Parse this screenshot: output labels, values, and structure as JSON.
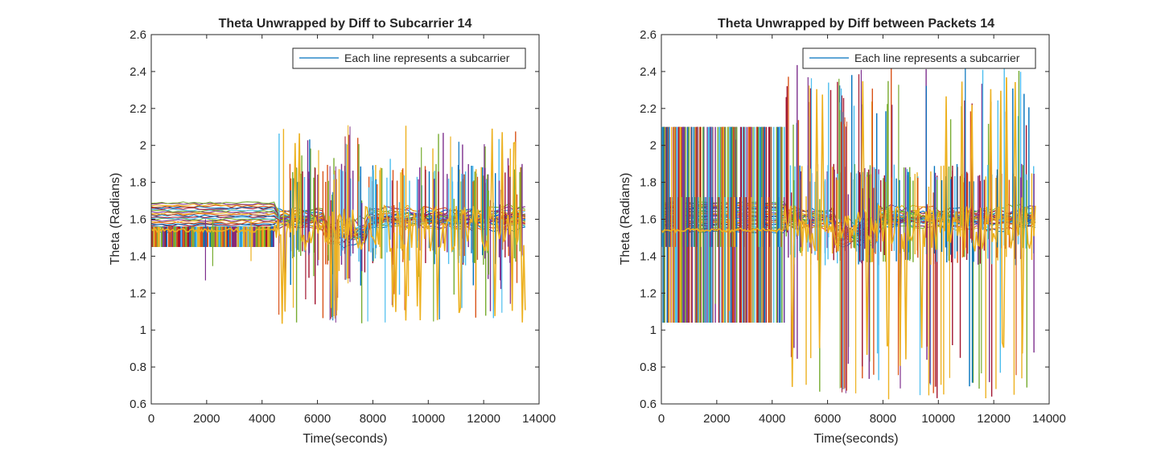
{
  "chart_data": [
    {
      "type": "line",
      "title": "Theta Unwrapped by Diff to Subcarrier 14",
      "xlabel": "Time(seconds)",
      "ylabel": "Theta (Radians)",
      "xlim": [
        0,
        14000
      ],
      "ylim": [
        0.6,
        2.6
      ],
      "xticks": [
        "0",
        "2000",
        "4000",
        "6000",
        "8000",
        "10000",
        "12000",
        "14000"
      ],
      "yticks": [
        "0.6",
        "0.8",
        "1",
        "1.2",
        "1.4",
        "1.6",
        "1.8",
        "2",
        "2.2",
        "2.4",
        "2.6"
      ],
      "legend": {
        "entries": [
          "Each line represents a subcarrier"
        ],
        "placement": "top-right"
      },
      "grid": false,
      "series_note": "Many overlapping subcarrier lines, ~13500 samples",
      "segments": [
        {
          "x": [
            0,
            4450
          ],
          "band": [
            1.45,
            1.7
          ],
          "spikes": [
            1.25,
            1.24
          ]
        },
        {
          "x": [
            4450,
            13500
          ],
          "band": [
            1.45,
            1.9
          ],
          "spikes": [
            1.03,
            2.11
          ]
        }
      ],
      "events": [
        {
          "x": [
            6450,
            6700
          ],
          "low": 1.04,
          "high": 1.89
        },
        {
          "x": [
            7000,
            7200
          ],
          "low": 1.25,
          "high": 2.11
        }
      ]
    },
    {
      "type": "line",
      "title": "Theta Unwrapped by Diff between Packets 14",
      "xlabel": "Time(seconds)",
      "ylabel": "Theta (Radians)",
      "xlim": [
        0,
        14000
      ],
      "ylim": [
        0.6,
        2.6
      ],
      "xticks": [
        "0",
        "2000",
        "4000",
        "6000",
        "8000",
        "10000",
        "12000",
        "14000"
      ],
      "yticks": [
        "0.6",
        "0.8",
        "1",
        "1.2",
        "1.4",
        "1.6",
        "1.8",
        "2",
        "2.2",
        "2.4",
        "2.6"
      ],
      "legend": {
        "entries": [
          "Each line represents a subcarrier"
        ],
        "placement": "top-right"
      },
      "grid": false,
      "series_note": "Many overlapping subcarrier lines, ~13500 samples",
      "segments": [
        {
          "x": [
            0,
            4450
          ],
          "band": [
            1.45,
            1.7
          ],
          "spikes": [
            1.03,
            2.11
          ]
        },
        {
          "x": [
            4450,
            13500
          ],
          "band": [
            1.45,
            1.9
          ],
          "spikes": [
            0.62,
            2.45
          ]
        }
      ],
      "events": [
        {
          "x": [
            6450,
            6700
          ],
          "low": 0.65,
          "high": 2.3
        }
      ]
    }
  ],
  "colors": [
    "#0072BD",
    "#D95319",
    "#EDB120",
    "#7E2F8E",
    "#77AC30",
    "#4DBEEE",
    "#A2142F"
  ],
  "axis_color": "#262626",
  "legend_line_color": "#0072BD"
}
